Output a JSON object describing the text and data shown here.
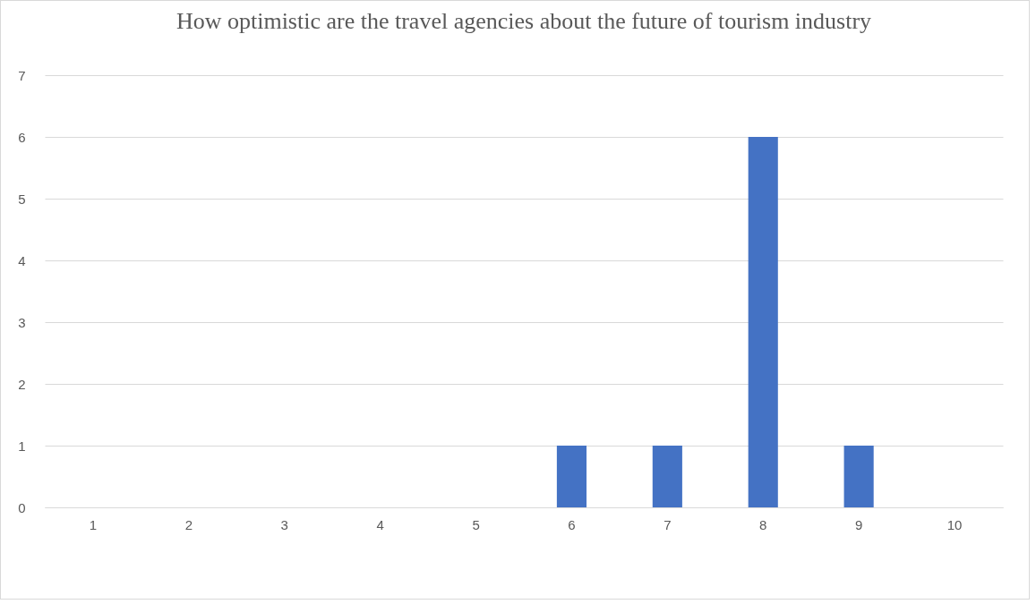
{
  "chart_data": {
    "type": "bar",
    "title": "How optimistic are the travel agencies about the future of tourism industry",
    "categories": [
      "1",
      "2",
      "3",
      "4",
      "5",
      "6",
      "7",
      "8",
      "9",
      "10"
    ],
    "values": [
      0,
      0,
      0,
      0,
      0,
      1,
      1,
      6,
      1,
      0
    ],
    "color": "#4472c4",
    "ylim": [
      0,
      7
    ],
    "yticks": [
      0,
      1,
      2,
      3,
      4,
      5,
      6,
      7
    ],
    "grid": "y"
  }
}
